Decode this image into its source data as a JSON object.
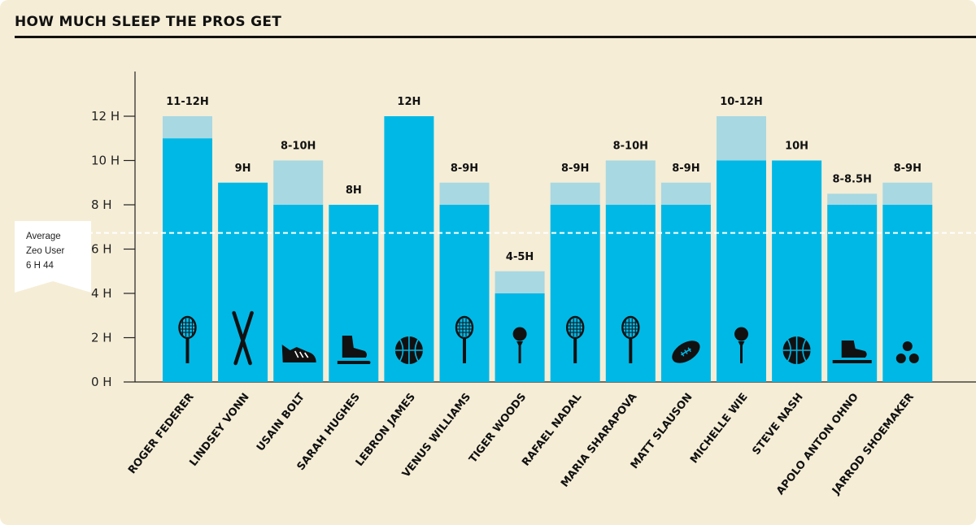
{
  "title": "HOW MUCH SLEEP THE PROS GET",
  "colors": {
    "background": "#f5edd6",
    "bar_main": "#00b8e6",
    "bar_range": "#a8d8e2",
    "icon": "#111111",
    "average_line": "#ffffff"
  },
  "reference_line": {
    "label_lines": [
      "Average",
      "Zeo User",
      "6 H 44"
    ],
    "value_hours": 6.73
  },
  "chart_data": {
    "type": "bar",
    "title": "HOW MUCH SLEEP THE PROS GET",
    "xlabel": "",
    "ylabel": "",
    "ylim": [
      0,
      12
    ],
    "yticks": [
      0,
      2,
      4,
      6,
      8,
      10,
      12
    ],
    "ytick_labels": [
      "0 H",
      "2 H",
      "4 H",
      "6 H",
      "8 H",
      "10 H",
      "12 H"
    ],
    "grid": false,
    "categories": [
      "ROGER FEDERER",
      "LINDSEY VONN",
      "USAIN BOLT",
      "SARAH HUGHES",
      "LEBRON JAMES",
      "VENUS WILLIAMS",
      "TIGER WOODS",
      "RAFAEL NADAL",
      "MARIA SHARAPOVA",
      "MATT SLAUSON",
      "MICHELLE WIE",
      "STEVE NASH",
      "APOLO ANTON OHNO",
      "JARROD SHOEMAKER"
    ],
    "range_labels": [
      "11-12H",
      "9H",
      "8-10H",
      "8H",
      "12H",
      "8-9H",
      "4-5H",
      "8-9H",
      "8-10H",
      "8-9H",
      "10-12H",
      "10H",
      "8-8.5H",
      "8-9H"
    ],
    "series": [
      {
        "values": [
          11,
          9,
          8,
          8,
          12,
          8,
          4,
          8,
          8,
          8,
          10,
          10,
          8,
          8
        ]
      },
      {
        "values": [
          12,
          9,
          10,
          8,
          12,
          9,
          5,
          9,
          10,
          9,
          12,
          10,
          8.5,
          9
        ]
      }
    ],
    "icons": [
      "tennis-racket-icon",
      "skis-icon",
      "running-shoe-icon",
      "ice-skate-icon",
      "basketball-icon",
      "tennis-racket-icon",
      "golf-ball-tee-icon",
      "tennis-racket-icon",
      "tennis-racket-icon",
      "football-icon",
      "golf-ball-tee-icon",
      "basketball-icon",
      "speed-skate-icon",
      "triathlon-icon"
    ]
  }
}
